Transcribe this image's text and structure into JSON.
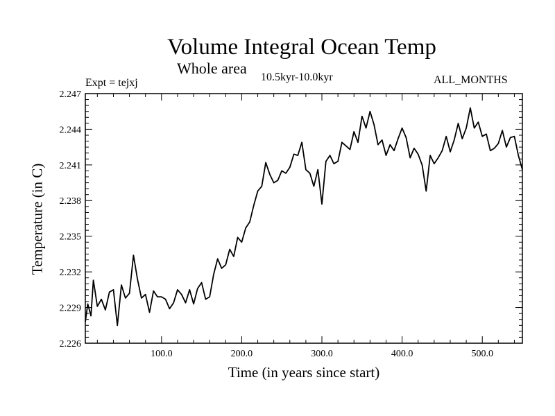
{
  "chart_data": {
    "type": "line",
    "title": "Volume Integral Ocean Temp",
    "subtitle": "Whole area",
    "period_label": "10.5kyr-10.0kyr",
    "left_label": "Expt = tejxj",
    "right_label": "ALL_MONTHS",
    "xlabel": "Time (in years since start)",
    "ylabel": "Temperature (in C)",
    "xlim": [
      5,
      550
    ],
    "ylim": [
      2.226,
      2.247
    ],
    "xticks": [
      "100.0",
      "200.0",
      "300.0",
      "400.0",
      "500.0"
    ],
    "yticks": [
      "2.226",
      "2.229",
      "2.232",
      "2.235",
      "2.238",
      "2.241",
      "2.244",
      "2.247"
    ],
    "series": [
      {
        "name": "tejxj",
        "x": [
          5,
          8,
          12,
          15,
          20,
          25,
          30,
          35,
          40,
          45,
          50,
          55,
          60,
          65,
          70,
          75,
          80,
          85,
          90,
          95,
          100,
          105,
          110,
          115,
          120,
          125,
          130,
          135,
          140,
          145,
          150,
          155,
          160,
          165,
          170,
          175,
          180,
          185,
          190,
          195,
          200,
          205,
          210,
          215,
          220,
          225,
          230,
          235,
          240,
          245,
          250,
          255,
          260,
          265,
          270,
          275,
          280,
          285,
          290,
          295,
          300,
          305,
          310,
          315,
          320,
          325,
          330,
          335,
          340,
          345,
          350,
          355,
          360,
          365,
          370,
          375,
          380,
          385,
          390,
          395,
          400,
          405,
          410,
          415,
          420,
          425,
          430,
          435,
          440,
          445,
          450,
          455,
          460,
          465,
          470,
          475,
          480,
          485,
          490,
          495,
          500,
          505,
          510,
          515,
          520,
          525,
          530,
          535,
          540,
          545,
          550
        ],
        "values": [
          2.2278,
          2.2293,
          2.2283,
          2.2313,
          2.2291,
          2.2297,
          2.2288,
          2.2303,
          2.2305,
          2.2275,
          2.2309,
          2.2298,
          2.2302,
          2.2334,
          2.2314,
          2.2298,
          2.2301,
          2.2286,
          2.2304,
          2.2299,
          2.2299,
          2.2297,
          2.2289,
          2.2294,
          2.2305,
          2.2301,
          2.2294,
          2.2305,
          2.2293,
          2.2306,
          2.2311,
          2.2297,
          2.2299,
          2.2318,
          2.2331,
          2.2323,
          2.2326,
          2.2339,
          2.2333,
          2.2349,
          2.2345,
          2.2357,
          2.2362,
          2.2376,
          2.2388,
          2.2392,
          2.2412,
          2.2402,
          2.2395,
          2.2397,
          2.2405,
          2.2403,
          2.2408,
          2.2419,
          2.2418,
          2.2429,
          2.2406,
          2.2403,
          2.2392,
          2.2406,
          2.2377,
          2.2413,
          2.2418,
          2.2411,
          2.2413,
          2.2429,
          2.2426,
          2.2423,
          2.2438,
          2.2429,
          2.2451,
          2.2441,
          2.2455,
          2.2444,
          2.2427,
          2.2431,
          2.2418,
          2.2427,
          2.2422,
          2.2432,
          2.2441,
          2.2433,
          2.2416,
          2.2424,
          2.2419,
          2.241,
          2.2388,
          2.2418,
          2.2411,
          2.2416,
          2.2422,
          2.2434,
          2.2421,
          2.2431,
          2.2445,
          2.2432,
          2.2441,
          2.2458,
          2.2441,
          2.2446,
          2.2434,
          2.2436,
          2.2422,
          2.2424,
          2.2428,
          2.2439,
          2.2425,
          2.2433,
          2.2434,
          2.2418,
          2.2406
        ]
      }
    ]
  }
}
